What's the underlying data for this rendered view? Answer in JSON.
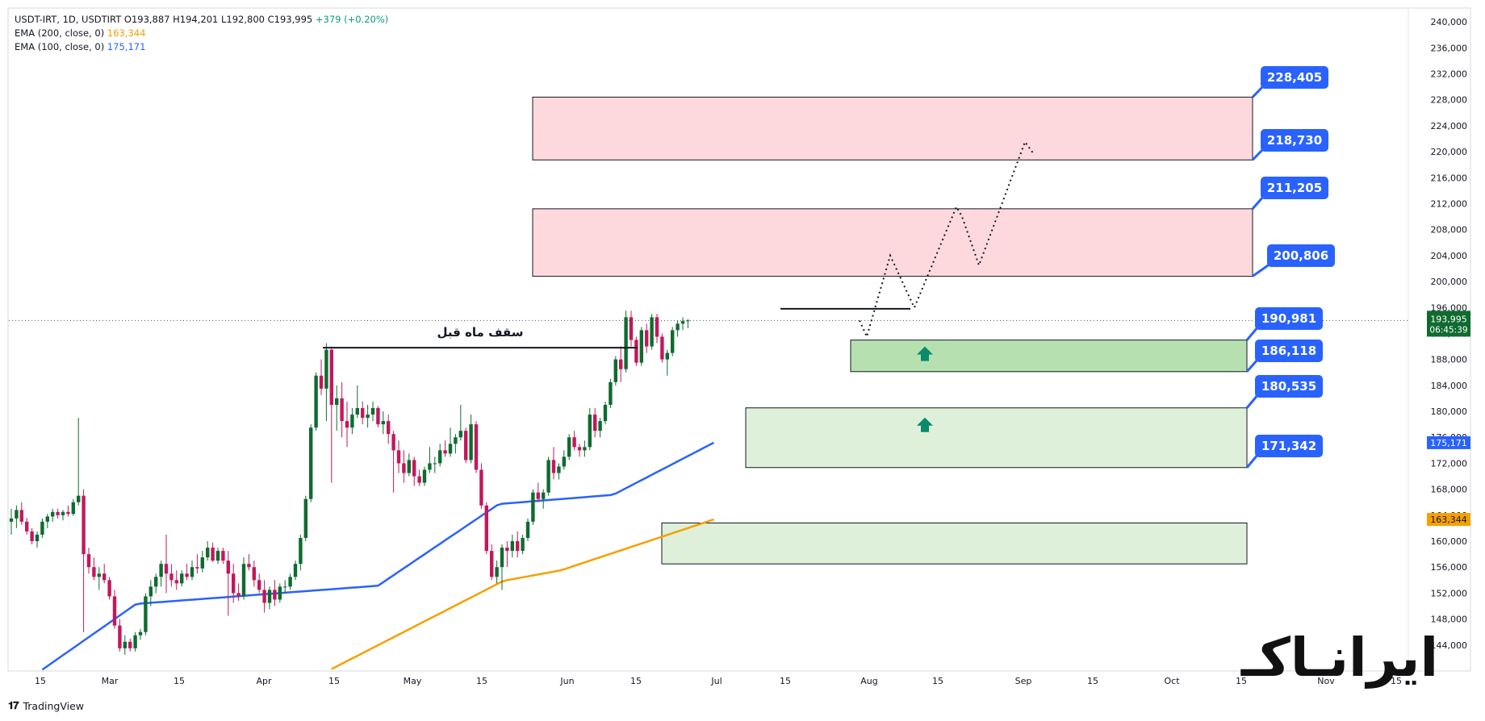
{
  "legend": {
    "symbol": "USDT-IRT, 1D, USDTIRT",
    "ohlc": "O193,887  H194,201  L192,800  C193,995",
    "change": "+379 (+0.20%)",
    "ema200_label": "EMA (200, close, 0)",
    "ema200_value": "163,344",
    "ema100_label": "EMA (100, close, 0)",
    "ema100_value": "175,171"
  },
  "branding": {
    "tradingview": "TradingView",
    "watermark": "ایرانـاکـ"
  },
  "colors": {
    "up": "#0f6b2f",
    "down": "#c2185b",
    "ema100": "#2962ff",
    "ema200": "#f5a000",
    "resistance_fill": "#fdd9de",
    "support_fill": "#dff0da",
    "support_strong_fill": "#b6e0b0",
    "label_blue": "#2962ff"
  },
  "annotations": {
    "previous_month_ceiling": "سقف ماه قبل"
  },
  "price_badges": {
    "current_price": "193,995",
    "countdown": "06:45:39",
    "ema100": "175,171",
    "ema200": "163,344"
  },
  "chart_data": {
    "type": "candlestick",
    "y_axis": {
      "ylim": [
        140000,
        242000
      ],
      "ticks": [
        "240,000",
        "236,000",
        "232,000",
        "228,000",
        "224,000",
        "220,000",
        "216,000",
        "212,000",
        "208,000",
        "204,000",
        "200,000",
        "196,000",
        "192,000",
        "188,000",
        "184,000",
        "180,000",
        "176,000",
        "172,000",
        "168,000",
        "164,000",
        "160,000",
        "156,000",
        "152,000",
        "148,000",
        "144,000"
      ]
    },
    "x_axis": {
      "ticks": [
        "15",
        "Mar",
        "15",
        "Apr",
        "15",
        "May",
        "15",
        "Jun",
        "15",
        "Jul",
        "15",
        "Aug",
        "15",
        "Sep",
        "15",
        "Oct",
        "15",
        "Nov",
        "15"
      ]
    },
    "levels": [
      {
        "label": "228,405",
        "value": 228405
      },
      {
        "label": "218,730",
        "value": 218730
      },
      {
        "label": "211,205",
        "value": 211205
      },
      {
        "label": "200,806",
        "value": 200806
      },
      {
        "label": "190,981",
        "value": 190981
      },
      {
        "label": "186,118",
        "value": 186118
      },
      {
        "label": "180,535",
        "value": 180535
      },
      {
        "label": "171,342",
        "value": 171342
      }
    ],
    "zones": [
      {
        "kind": "resistance",
        "from": 218730,
        "to": 228405
      },
      {
        "kind": "resistance",
        "from": 200806,
        "to": 211205
      },
      {
        "kind": "support_strong",
        "from": 186118,
        "to": 190981
      },
      {
        "kind": "support",
        "from": 171342,
        "to": 180535
      },
      {
        "kind": "support",
        "from": 156500,
        "to": 162800
      }
    ],
    "projection_path": [
      193995,
      191500,
      204000,
      196200,
      196000,
      211500,
      210000,
      202500,
      221500,
      219800
    ],
    "ceiling_level": 189800,
    "recent_high_level": 195800,
    "ema200_start": 140300,
    "ema200_end": 163344,
    "ema100_start": 140200,
    "ema100_end": 175171,
    "candles": [
      [
        163000,
        165000,
        161000,
        163500
      ],
      [
        163500,
        165500,
        162000,
        164800
      ],
      [
        164800,
        166000,
        162500,
        163000
      ],
      [
        163000,
        163600,
        161000,
        161500
      ],
      [
        161500,
        162000,
        159500,
        160000
      ],
      [
        160000,
        161500,
        159000,
        161000
      ],
      [
        161000,
        163500,
        160500,
        163000
      ],
      [
        163000,
        164200,
        162000,
        163800
      ],
      [
        163800,
        165000,
        163000,
        164500
      ],
      [
        164500,
        165000,
        163500,
        164000
      ],
      [
        164000,
        164800,
        163200,
        164500
      ],
      [
        164500,
        165500,
        163800,
        164200
      ],
      [
        164200,
        166500,
        163900,
        166000
      ],
      [
        166000,
        179000,
        165500,
        167000
      ],
      [
        167000,
        168000,
        146000,
        158000
      ],
      [
        158000,
        159000,
        155000,
        156000
      ],
      [
        156000,
        157500,
        154000,
        154500
      ],
      [
        154500,
        156000,
        152500,
        155000
      ],
      [
        155000,
        156500,
        153500,
        154000
      ],
      [
        154000,
        154500,
        151000,
        151500
      ],
      [
        151500,
        152500,
        146500,
        147000
      ],
      [
        147000,
        148000,
        143000,
        143500
      ],
      [
        143500,
        145500,
        142500,
        144500
      ],
      [
        144500,
        145000,
        143000,
        143500
      ],
      [
        143500,
        146000,
        143000,
        145500
      ],
      [
        145500,
        146500,
        144800,
        146000
      ],
      [
        146000,
        152000,
        145500,
        151500
      ],
      [
        151500,
        154000,
        150000,
        153000
      ],
      [
        153000,
        155000,
        152000,
        154500
      ],
      [
        154500,
        157000,
        153000,
        156500
      ],
      [
        156500,
        161000,
        152000,
        155000
      ],
      [
        155000,
        156500,
        153000,
        154000
      ],
      [
        154000,
        155500,
        152500,
        153500
      ],
      [
        153500,
        155500,
        153000,
        155000
      ],
      [
        155000,
        156500,
        154000,
        154500
      ],
      [
        154500,
        157000,
        154000,
        156000
      ],
      [
        156000,
        158000,
        155000,
        155800
      ],
      [
        155800,
        158500,
        155200,
        157500
      ],
      [
        157500,
        160000,
        157000,
        159000
      ],
      [
        159000,
        159800,
        156800,
        157000
      ],
      [
        157000,
        159000,
        156500,
        158500
      ],
      [
        158500,
        159000,
        156500,
        157000
      ],
      [
        157000,
        158500,
        148500,
        155000
      ],
      [
        155000,
        156500,
        150500,
        152000
      ],
      [
        152000,
        153500,
        150800,
        151500
      ],
      [
        151500,
        157500,
        151000,
        156500
      ],
      [
        156500,
        158000,
        155500,
        156000
      ],
      [
        156000,
        157000,
        153000,
        154000
      ],
      [
        154000,
        155000,
        152000,
        152500
      ],
      [
        152500,
        154000,
        149000,
        150500
      ],
      [
        150500,
        153000,
        149500,
        152500
      ],
      [
        152500,
        154000,
        150000,
        151000
      ],
      [
        151000,
        153500,
        150500,
        153000
      ],
      [
        153000,
        154000,
        152000,
        153000
      ],
      [
        153000,
        155000,
        152500,
        154500
      ],
      [
        154500,
        157000,
        154000,
        156500
      ],
      [
        156500,
        161000,
        155500,
        160500
      ],
      [
        160500,
        167000,
        160000,
        166500
      ],
      [
        166500,
        178000,
        166000,
        177500
      ],
      [
        177500,
        186000,
        177000,
        185500
      ],
      [
        185500,
        188000,
        182500,
        183500
      ],
      [
        183500,
        190500,
        178500,
        189500
      ],
      [
        189500,
        190000,
        169000,
        181000
      ],
      [
        181000,
        184000,
        177000,
        182000
      ],
      [
        182000,
        184500,
        176000,
        178500
      ],
      [
        178500,
        181500,
        174500,
        177500
      ],
      [
        177500,
        180500,
        176500,
        179500
      ],
      [
        179500,
        184000,
        179000,
        180500
      ],
      [
        180500,
        181500,
        178000,
        179000
      ],
      [
        179000,
        181000,
        177500,
        179500
      ],
      [
        179500,
        181500,
        178500,
        180500
      ],
      [
        180500,
        180800,
        177500,
        178000
      ],
      [
        178000,
        180000,
        176500,
        178500
      ],
      [
        178500,
        179500,
        175000,
        176500
      ],
      [
        176500,
        177000,
        167500,
        174000
      ],
      [
        174000,
        175500,
        170500,
        172000
      ],
      [
        172000,
        174000,
        169000,
        170500
      ],
      [
        170500,
        173500,
        170000,
        172500
      ],
      [
        172500,
        173000,
        168500,
        170000
      ],
      [
        170000,
        171000,
        168500,
        169000
      ],
      [
        169000,
        171500,
        168500,
        171000
      ],
      [
        171000,
        174500,
        170500,
        172000
      ],
      [
        172000,
        173000,
        170500,
        172000
      ],
      [
        172000,
        175000,
        171500,
        174000
      ],
      [
        174000,
        175500,
        173000,
        173500
      ],
      [
        173500,
        177500,
        173000,
        175000
      ],
      [
        175000,
        176500,
        173500,
        176000
      ],
      [
        176000,
        181000,
        175500,
        177000
      ],
      [
        177000,
        177500,
        172000,
        172500
      ],
      [
        172500,
        179500,
        172000,
        178000
      ],
      [
        178000,
        178500,
        170500,
        171000
      ],
      [
        171000,
        172000,
        165000,
        165500
      ],
      [
        165500,
        166000,
        158000,
        158500
      ],
      [
        158500,
        159500,
        154000,
        154500
      ],
      [
        154500,
        157000,
        153500,
        156000
      ],
      [
        156000,
        159500,
        152500,
        159000
      ],
      [
        159000,
        160000,
        156000,
        158500
      ],
      [
        158500,
        161000,
        157500,
        160000
      ],
      [
        160000,
        161500,
        157500,
        158500
      ],
      [
        158500,
        161000,
        158000,
        160500
      ],
      [
        160500,
        163500,
        160000,
        163000
      ],
      [
        163000,
        168000,
        162500,
        167500
      ],
      [
        167500,
        169000,
        166000,
        166500
      ],
      [
        166500,
        168000,
        165000,
        167500
      ],
      [
        167500,
        173000,
        167000,
        172500
      ],
      [
        172500,
        174500,
        169500,
        170500
      ],
      [
        170500,
        172000,
        169500,
        171500
      ],
      [
        171500,
        174000,
        171000,
        173000
      ],
      [
        173000,
        176500,
        172500,
        176000
      ],
      [
        176000,
        177000,
        174000,
        174500
      ],
      [
        174500,
        175000,
        173000,
        174000
      ],
      [
        174000,
        175500,
        173000,
        174500
      ],
      [
        174500,
        180500,
        174000,
        179500
      ],
      [
        179500,
        180500,
        176000,
        177000
      ],
      [
        177000,
        179000,
        176000,
        178500
      ],
      [
        178500,
        181500,
        178000,
        181000
      ],
      [
        181000,
        185000,
        180500,
        184500
      ],
      [
        184500,
        188500,
        184000,
        188000
      ],
      [
        188000,
        190000,
        184500,
        186500
      ],
      [
        186500,
        195500,
        186000,
        194500
      ],
      [
        194500,
        195500,
        190000,
        191000
      ],
      [
        191000,
        191500,
        187000,
        187500
      ],
      [
        187500,
        193000,
        187000,
        192500
      ],
      [
        192500,
        193500,
        189000,
        190000
      ],
      [
        190000,
        195000,
        189500,
        194500
      ],
      [
        194500,
        195000,
        190500,
        191500
      ],
      [
        191500,
        192000,
        187500,
        188000
      ],
      [
        188000,
        189500,
        185500,
        189000
      ],
      [
        189000,
        193000,
        188500,
        192500
      ],
      [
        192500,
        194000,
        191500,
        193500
      ],
      [
        193500,
        194500,
        192500,
        193900
      ],
      [
        193887,
        194201,
        192800,
        193995
      ]
    ]
  }
}
